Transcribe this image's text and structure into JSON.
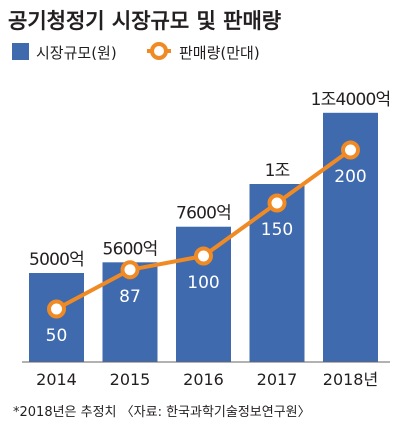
{
  "colors": {
    "bar": "#3f6aae",
    "line": "#f08a24",
    "marker_fill": "#ffffff",
    "text": "#231f20",
    "axis": "#666666"
  },
  "chart_data": {
    "type": "bar",
    "title": "공기청정기 시장규모 및 판매량",
    "categories": [
      "2014",
      "2015",
      "2016",
      "2017",
      "2018년"
    ],
    "series": [
      {
        "name": "시장규모(원)",
        "type": "bar",
        "values": [
          5000,
          5600,
          7600,
          10000,
          14000
        ],
        "value_unit": "억 원",
        "data_labels": [
          "5000억",
          "5600억",
          "7600억",
          "1조",
          "1조4000억"
        ]
      },
      {
        "name": "판매량(만대)",
        "type": "line",
        "values": [
          50,
          87,
          100,
          150,
          200
        ],
        "data_labels": [
          "50",
          "87",
          "100",
          "150",
          "200"
        ]
      }
    ],
    "legend": {
      "position": "top-left"
    },
    "grid": false,
    "note": "*2018년은 추정치 〈자료: 한국과학기술정보연구원〉"
  }
}
